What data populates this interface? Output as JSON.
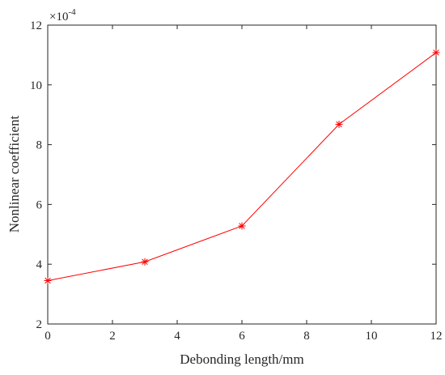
{
  "chart_data": {
    "type": "line",
    "title": "",
    "xlabel": "Debonding length/mm",
    "ylabel": "Nonlinear coefficient",
    "y_scale_factor": {
      "base": "×10",
      "exponent": "-4"
    },
    "xlim": [
      0,
      12
    ],
    "ylim": [
      2,
      12
    ],
    "x_ticks": [
      "0",
      "2",
      "4",
      "6",
      "8",
      "10",
      "12"
    ],
    "y_ticks": [
      "2",
      "4",
      "6",
      "8",
      "10",
      "12"
    ],
    "grid": false,
    "legend": "none",
    "series": [
      {
        "color": "#ff0000",
        "marker": "asterisk",
        "x": [
          0,
          3,
          6,
          9,
          12
        ],
        "y": [
          3.45,
          4.08,
          5.28,
          8.68,
          11.08
        ]
      }
    ]
  }
}
